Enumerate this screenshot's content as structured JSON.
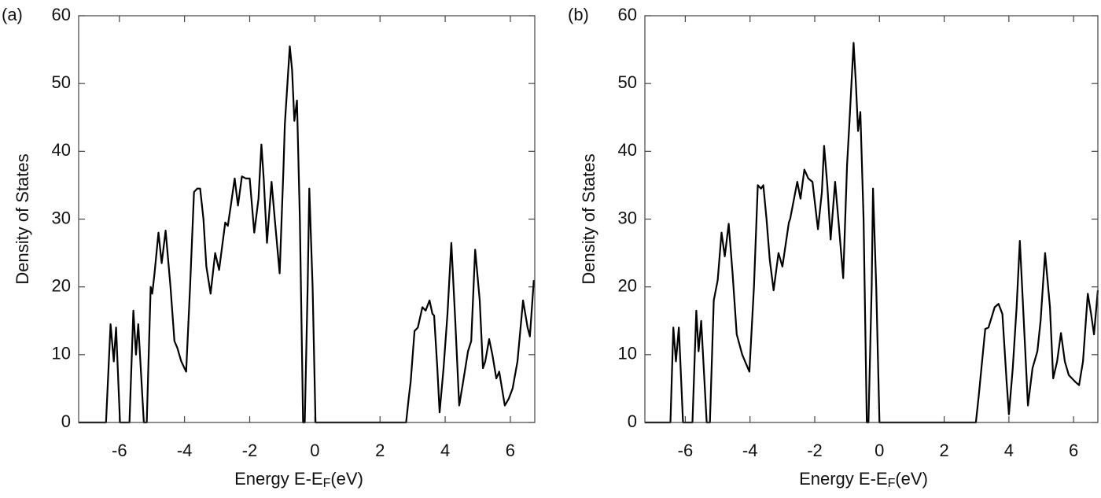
{
  "chart_data": [
    {
      "type": "line",
      "panel_label": "(a)",
      "ylabel": "Density of States",
      "xlabel": "Energy E-E",
      "xlabel_sub": "F",
      "xlabel_end": "(eV)",
      "color": "#000000",
      "xlim": [
        -7.25,
        6.75
      ],
      "ylim": [
        0,
        60
      ],
      "xticks": [
        -6,
        -4,
        -2,
        0,
        2,
        4,
        6
      ],
      "yticks": [
        0,
        10,
        20,
        30,
        40,
        50,
        60
      ],
      "x": [
        -7.25,
        -6.41,
        -6.27,
        -6.17,
        -6.1,
        -5.98,
        -5.69,
        -5.57,
        -5.49,
        -5.42,
        -5.25,
        -5.16,
        -5.04,
        -4.99,
        -4.92,
        -4.8,
        -4.7,
        -4.58,
        -4.43,
        -4.31,
        -4.22,
        -4.1,
        -3.95,
        -3.83,
        -3.71,
        -3.61,
        -3.52,
        -3.42,
        -3.33,
        -3.2,
        -3.06,
        -2.94,
        -2.75,
        -2.67,
        -2.58,
        -2.46,
        -2.36,
        -2.24,
        -2.12,
        -2.0,
        -1.86,
        -1.73,
        -1.64,
        -1.57,
        -1.47,
        -1.33,
        -1.23,
        -1.08,
        -0.96,
        -0.92,
        -0.77,
        -0.7,
        -0.63,
        -0.55,
        -0.46,
        -0.36,
        -0.31,
        -0.22,
        -0.17,
        -0.07,
        0.02,
        2.8,
        2.89,
        2.94,
        3.06,
        3.16,
        3.3,
        3.4,
        3.52,
        3.61,
        3.66,
        3.76,
        3.83,
        3.95,
        4.07,
        4.19,
        4.31,
        4.43,
        4.55,
        4.7,
        4.8,
        4.92,
        5.06,
        5.16,
        5.23,
        5.35,
        5.45,
        5.57,
        5.66,
        5.83,
        5.95,
        6.07,
        6.22,
        6.39,
        6.53,
        6.6,
        6.72
      ],
      "values": [
        0,
        0,
        14.5,
        9,
        14,
        0,
        0,
        16.5,
        10,
        14.5,
        0,
        0,
        20,
        19,
        22,
        28,
        23.5,
        28.3,
        20,
        12,
        11,
        9,
        7.5,
        20,
        34,
        34.5,
        34.5,
        30,
        23,
        19,
        25,
        22.5,
        29.5,
        29,
        32,
        36,
        32,
        36.3,
        36,
        36,
        28,
        33,
        41,
        36,
        26.5,
        35.5,
        30,
        22,
        38,
        44,
        55.5,
        52,
        44.5,
        47.5,
        30,
        0,
        0,
        20,
        34.5,
        20,
        0,
        0,
        4,
        6,
        13.5,
        14,
        17,
        16.5,
        18,
        16,
        15.8,
        8,
        1.5,
        8,
        16,
        26.5,
        15,
        2.5,
        6,
        10.5,
        12,
        25.5,
        18,
        8,
        9,
        12.3,
        10,
        6.5,
        7.5,
        2.5,
        3.5,
        5,
        9,
        18,
        14,
        12.7,
        21
      ]
    },
    {
      "type": "line",
      "panel_label": "(b)",
      "ylabel": "Density of States",
      "xlabel": "Energy E-E",
      "xlabel_sub": "F",
      "xlabel_end": "(eV)",
      "color": "#000000",
      "xlim": [
        -7.25,
        6.75
      ],
      "ylim": [
        0,
        60
      ],
      "xticks": [
        -6,
        -4,
        -2,
        0,
        2,
        4,
        6
      ],
      "yticks": [
        0,
        10,
        20,
        30,
        40,
        50,
        60
      ],
      "x": [
        -7.25,
        -6.46,
        -6.37,
        -6.29,
        -6.2,
        -6.07,
        -5.78,
        -5.66,
        -5.59,
        -5.51,
        -5.34,
        -5.24,
        -5.12,
        -5.0,
        -4.88,
        -4.78,
        -4.66,
        -4.54,
        -4.41,
        -4.24,
        -4.02,
        -3.88,
        -3.76,
        -3.66,
        -3.59,
        -3.49,
        -3.39,
        -3.27,
        -3.12,
        -3.0,
        -2.8,
        -2.76,
        -2.54,
        -2.44,
        -2.32,
        -2.2,
        -2.07,
        -1.9,
        -1.78,
        -1.71,
        -1.61,
        -1.51,
        -1.37,
        -1.27,
        -1.12,
        -1.0,
        -0.93,
        -0.8,
        -0.73,
        -0.66,
        -0.59,
        -0.49,
        -0.39,
        -0.34,
        -0.24,
        -0.2,
        -0.1,
        0.0,
        2.98,
        3.07,
        3.27,
        3.37,
        3.56,
        3.68,
        3.8,
        3.93,
        4.0,
        4.12,
        4.24,
        4.34,
        4.46,
        4.59,
        4.73,
        4.88,
        4.98,
        5.12,
        5.27,
        5.37,
        5.49,
        5.61,
        5.73,
        5.85,
        6.05,
        6.17,
        6.29,
        6.44,
        6.54,
        6.63,
        6.75
      ],
      "values": [
        0,
        0,
        14,
        9,
        14,
        0,
        0,
        16.5,
        10.5,
        15,
        0,
        0,
        18,
        21,
        28,
        24.5,
        29.3,
        22,
        13,
        10,
        7.5,
        20,
        35,
        34.5,
        35,
        30,
        24,
        19.5,
        25,
        23,
        29.5,
        30,
        35.5,
        33,
        37.3,
        36,
        35.5,
        28.5,
        34,
        40.8,
        35,
        27,
        35.5,
        30,
        21.3,
        38,
        44,
        56,
        50,
        43,
        45.8,
        30,
        0,
        0,
        20,
        34.5,
        20,
        0,
        0,
        4,
        13.8,
        14,
        17,
        17.5,
        16,
        6,
        1.2,
        8,
        17,
        26.8,
        15,
        2.5,
        8,
        10.5,
        15,
        25,
        17,
        6.5,
        9,
        13.2,
        9,
        7,
        6,
        5.5,
        9,
        19,
        16,
        13,
        19.5
      ]
    }
  ]
}
